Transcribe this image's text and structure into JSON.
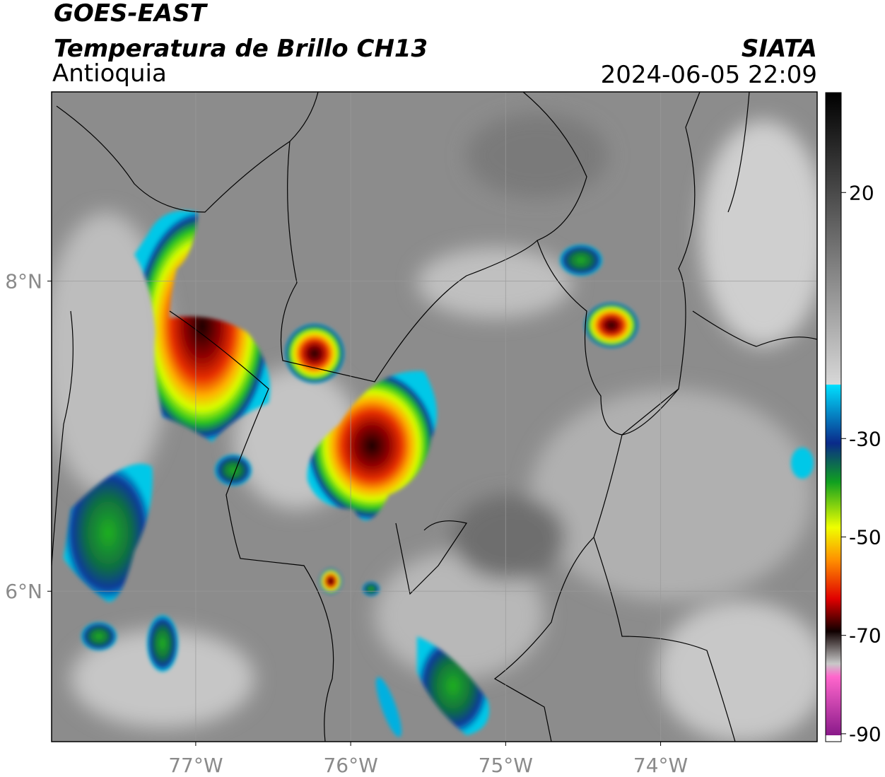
{
  "header": {
    "title": "GOES-EAST",
    "subtitle": "Temperatura de Brillo CH13",
    "region": "Antioquia",
    "source": "SIATA",
    "datetime": "2024-06-05 22:09"
  },
  "map": {
    "type": "map",
    "xlim": [
      -77.93,
      -72.99
    ],
    "ylim": [
      5.03,
      9.22
    ],
    "xticks": [
      {
        "value": -77,
        "label": "77°W"
      },
      {
        "value": -76,
        "label": "76°W"
      },
      {
        "value": -75,
        "label": "75°W"
      },
      {
        "value": -74,
        "label": "74°W"
      }
    ],
    "yticks": [
      {
        "value": 6,
        "label": "6°N"
      },
      {
        "value": 8,
        "label": "8°N"
      }
    ],
    "grid": true
  },
  "colorbar": {
    "lim": [
      -91.6,
      40.3
    ],
    "ticks": [
      20,
      -30,
      -50,
      -70,
      -90
    ]
  }
}
